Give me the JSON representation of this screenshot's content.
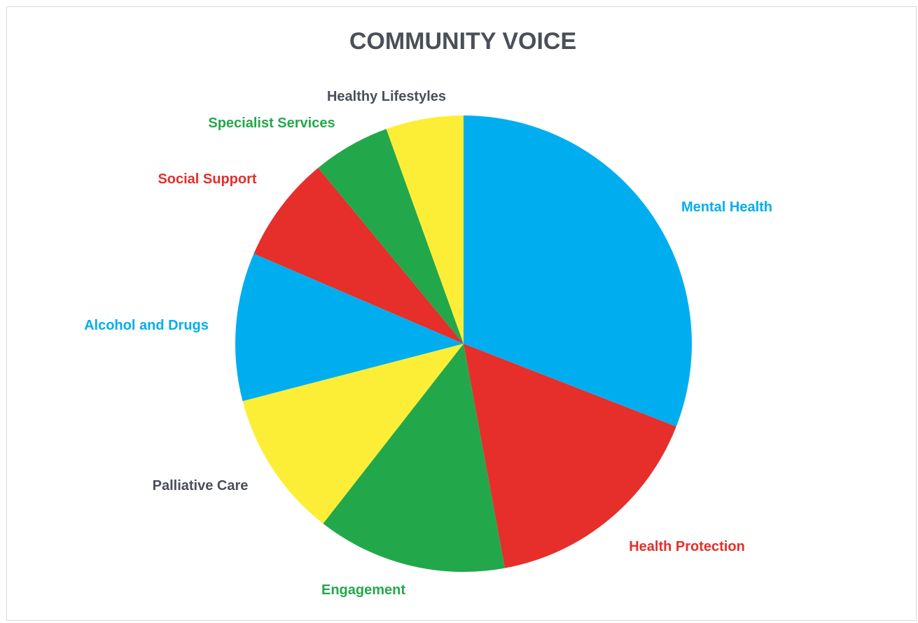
{
  "chart_data": {
    "type": "pie",
    "title": "COMMUNITY VOICE",
    "start_angle_deg": 0,
    "direction": "clockwise",
    "legend": "none",
    "slices": [
      {
        "label": "Mental Health",
        "value": 31.5,
        "color": "#00AEEF",
        "label_color": "#00AEEF"
      },
      {
        "label": "Health Protection",
        "value": 16.5,
        "color": "#E62E2A",
        "label_color": "#E62E2A"
      },
      {
        "label": "Engagement",
        "value": 13.7,
        "color": "#22A84B",
        "label_color": "#22A84B"
      },
      {
        "label": "Palliative Care",
        "value": 10.6,
        "color": "#FCEE37",
        "label_color": "#4A4F58"
      },
      {
        "label": "Alcohol and Drugs",
        "value": 10.7,
        "color": "#00AEEF",
        "label_color": "#00AEEF"
      },
      {
        "label": "Social Support",
        "value": 7.7,
        "color": "#E62E2A",
        "label_color": "#E62E2A"
      },
      {
        "label": "Specialist Services",
        "value": 5.6,
        "color": "#22A84B",
        "label_color": "#22A84B"
      },
      {
        "label": "Healthy Lifestyles",
        "value": 5.6,
        "color": "#FCEE37",
        "label_color": "#4A4F58"
      }
    ]
  }
}
